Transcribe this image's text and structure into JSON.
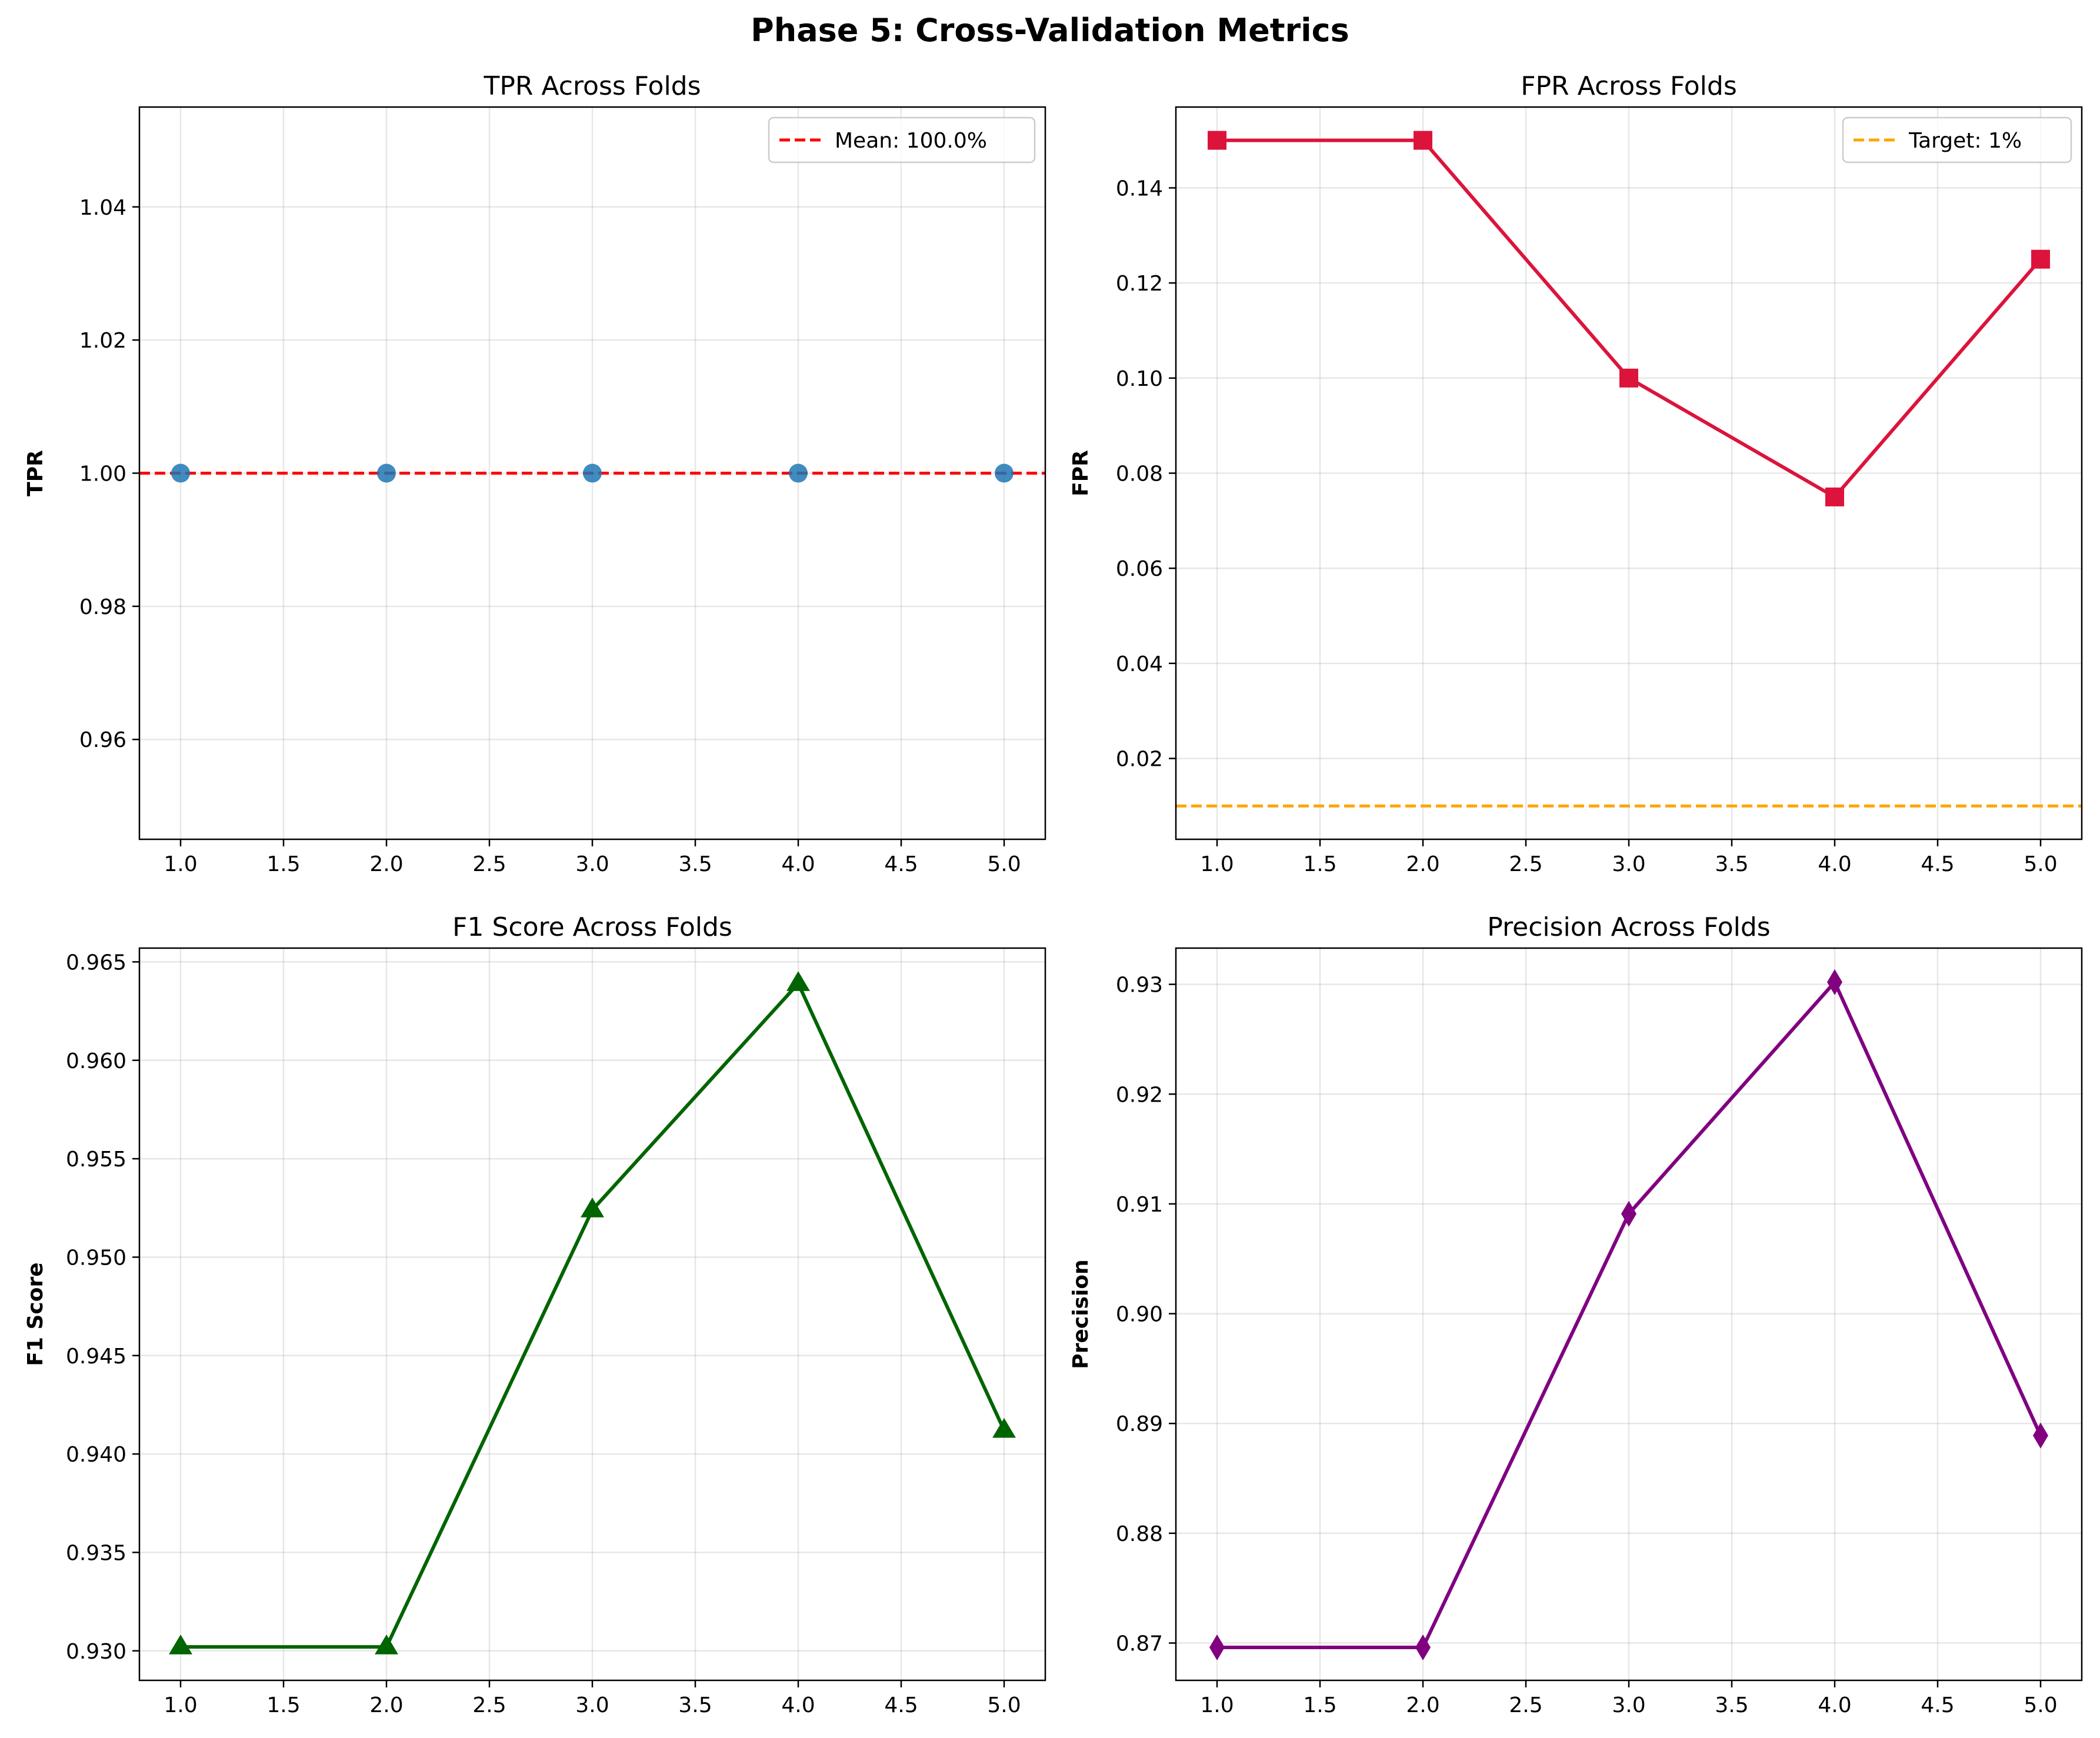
{
  "title": "Phase 5: Cross-Validation Metrics",
  "chart_data": [
    {
      "type": "line",
      "title": "TPR Across Folds",
      "xlabel": "",
      "ylabel": "TPR",
      "x": [
        1,
        2,
        3,
        4,
        5
      ],
      "series": [
        {
          "values": [
            1.0,
            1.0,
            1.0,
            1.0,
            1.0
          ],
          "color": "#1f77b4",
          "marker": "circle",
          "line": false
        }
      ],
      "reference_line": {
        "y": 1.0,
        "label": "Mean: 100.0%",
        "color": "#ff0000"
      },
      "xlim": [
        0.8,
        5.2
      ],
      "ylim": [
        0.945,
        1.055
      ],
      "xticks": [
        "1.0",
        "1.5",
        "2.0",
        "2.5",
        "3.0",
        "3.5",
        "4.0",
        "4.5",
        "5.0"
      ],
      "yticks": [
        "0.96",
        "0.98",
        "1.00",
        "1.02",
        "1.04"
      ],
      "grid": true,
      "legend": "top-right"
    },
    {
      "type": "line",
      "title": "FPR Across Folds",
      "xlabel": "",
      "ylabel": "FPR",
      "x": [
        1,
        2,
        3,
        4,
        5
      ],
      "series": [
        {
          "values": [
            0.15,
            0.15,
            0.1,
            0.075,
            0.125
          ],
          "color": "#dc143c",
          "marker": "square",
          "line": true
        }
      ],
      "reference_line": {
        "y": 0.01,
        "label": "Target: 1%",
        "color": "#ffa500"
      },
      "xlim": [
        0.8,
        5.2
      ],
      "ylim": [
        0.003,
        0.157
      ],
      "xticks": [
        "1.0",
        "1.5",
        "2.0",
        "2.5",
        "3.0",
        "3.5",
        "4.0",
        "4.5",
        "5.0"
      ],
      "yticks": [
        "0.02",
        "0.04",
        "0.06",
        "0.08",
        "0.10",
        "0.12",
        "0.14"
      ],
      "grid": true,
      "legend": "top-right"
    },
    {
      "type": "line",
      "title": "F1 Score Across Folds",
      "xlabel": "",
      "ylabel": "F1 Score",
      "x": [
        1,
        2,
        3,
        4,
        5
      ],
      "series": [
        {
          "values": [
            0.9302,
            0.9302,
            0.9524,
            0.9639,
            0.9412
          ],
          "color": "#006400",
          "marker": "triangle",
          "line": true
        }
      ],
      "xlim": [
        0.8,
        5.2
      ],
      "ylim": [
        0.9285,
        0.9657
      ],
      "xticks": [
        "1.0",
        "1.5",
        "2.0",
        "2.5",
        "3.0",
        "3.5",
        "4.0",
        "4.5",
        "5.0"
      ],
      "yticks": [
        "0.930",
        "0.935",
        "0.940",
        "0.945",
        "0.950",
        "0.955",
        "0.960",
        "0.965"
      ],
      "grid": true
    },
    {
      "type": "line",
      "title": "Precision Across Folds",
      "xlabel": "",
      "ylabel": "Precision",
      "x": [
        1,
        2,
        3,
        4,
        5
      ],
      "series": [
        {
          "values": [
            0.8696,
            0.8696,
            0.9091,
            0.9302,
            0.8889
          ],
          "color": "#800080",
          "marker": "diamond",
          "line": true
        }
      ],
      "xlim": [
        0.8,
        5.2
      ],
      "ylim": [
        0.8666,
        0.9333
      ],
      "xticks": [
        "1.0",
        "1.5",
        "2.0",
        "2.5",
        "3.0",
        "3.5",
        "4.0",
        "4.5",
        "5.0"
      ],
      "yticks": [
        "0.87",
        "0.88",
        "0.89",
        "0.90",
        "0.91",
        "0.92",
        "0.93"
      ],
      "grid": true
    }
  ]
}
